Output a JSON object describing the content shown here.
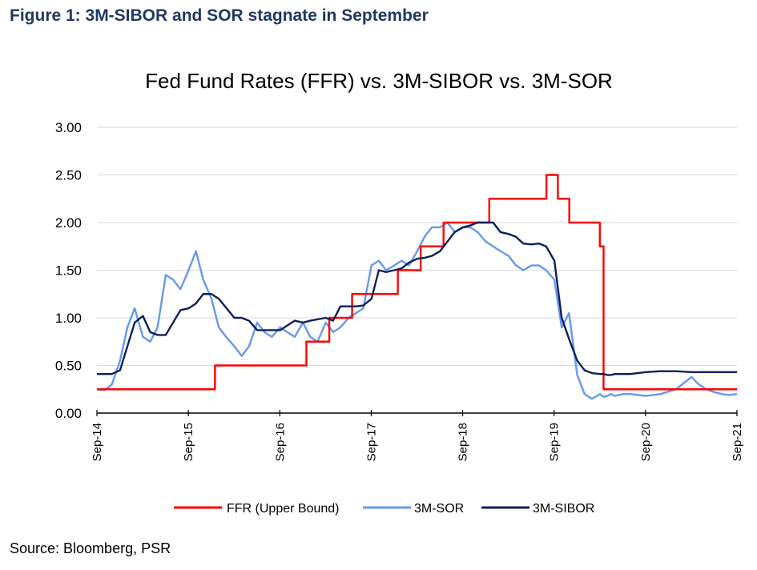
{
  "figure_title": "Figure 1: 3M-SIBOR and SOR stagnate in September",
  "source": "Source: Bloomberg, PSR",
  "chart_data": {
    "type": "line",
    "title": "Fed Fund Rates (FFR) vs. 3M-SIBOR vs. 3M-SOR",
    "xlabel": "",
    "ylabel": "",
    "xlim": [
      2014.667,
      2021.667
    ],
    "ylim": [
      0,
      3
    ],
    "y_ticks": [
      "0.00",
      "0.50",
      "1.00",
      "1.50",
      "2.00",
      "2.50",
      "3.00"
    ],
    "x_ticks": [
      "Sep-14",
      "Sep-15",
      "Sep-16",
      "Sep-17",
      "Sep-18",
      "Sep-19",
      "Sep-20",
      "Sep-21"
    ],
    "grid": "horizontal",
    "legend_position": "bottom",
    "colors": {
      "ffr": "#ff0000",
      "sor": "#6699ee",
      "sibor": "#0d1f5c"
    },
    "series": [
      {
        "name": "FFR (Upper Bound)",
        "step": true,
        "x": [
          2014.667,
          2015.958,
          2016.958,
          2017.208,
          2017.458,
          2017.958,
          2018.208,
          2018.458,
          2018.958,
          2019.583,
          2019.708,
          2019.833,
          2020.167,
          2020.208,
          2021.667
        ],
        "values": [
          0.25,
          0.5,
          0.75,
          1.0,
          1.25,
          1.5,
          1.75,
          2.0,
          2.25,
          2.5,
          2.25,
          2.0,
          1.75,
          0.25,
          0.25
        ]
      },
      {
        "name": "3M-SOR",
        "x": [
          2014.667,
          2014.75,
          2014.83,
          2014.92,
          2015.0,
          2015.08,
          2015.17,
          2015.25,
          2015.33,
          2015.42,
          2015.5,
          2015.58,
          2015.67,
          2015.75,
          2015.83,
          2015.92,
          2016.0,
          2016.08,
          2016.17,
          2016.25,
          2016.33,
          2016.42,
          2016.5,
          2016.58,
          2016.67,
          2016.75,
          2016.83,
          2016.92,
          2017.0,
          2017.08,
          2017.17,
          2017.25,
          2017.33,
          2017.42,
          2017.5,
          2017.58,
          2017.67,
          2017.75,
          2017.83,
          2017.92,
          2018.0,
          2018.08,
          2018.17,
          2018.25,
          2018.33,
          2018.42,
          2018.5,
          2018.58,
          2018.67,
          2018.75,
          2018.83,
          2018.92,
          2019.0,
          2019.08,
          2019.17,
          2019.25,
          2019.33,
          2019.42,
          2019.5,
          2019.58,
          2019.67,
          2019.75,
          2019.83,
          2019.92,
          2020.0,
          2020.08,
          2020.17,
          2020.21,
          2020.25,
          2020.29,
          2020.33,
          2020.42,
          2020.5,
          2020.67,
          2020.83,
          2021.0,
          2021.17,
          2021.25,
          2021.33,
          2021.42,
          2021.5,
          2021.58,
          2021.667
        ],
        "values": [
          0.25,
          0.24,
          0.3,
          0.55,
          0.9,
          1.1,
          0.8,
          0.75,
          0.9,
          1.45,
          1.4,
          1.3,
          1.5,
          1.7,
          1.4,
          1.2,
          0.9,
          0.8,
          0.7,
          0.6,
          0.7,
          0.95,
          0.85,
          0.8,
          0.9,
          0.85,
          0.8,
          0.95,
          0.8,
          0.75,
          0.95,
          0.85,
          0.9,
          1.0,
          1.05,
          1.1,
          1.55,
          1.6,
          1.5,
          1.55,
          1.6,
          1.55,
          1.7,
          1.85,
          1.95,
          1.95,
          2.0,
          1.9,
          1.95,
          1.95,
          1.9,
          1.8,
          1.75,
          1.7,
          1.65,
          1.55,
          1.5,
          1.55,
          1.55,
          1.5,
          1.4,
          0.9,
          1.05,
          0.4,
          0.2,
          0.15,
          0.2,
          0.17,
          0.18,
          0.2,
          0.18,
          0.2,
          0.2,
          0.18,
          0.2,
          0.25,
          0.38,
          0.3,
          0.25,
          0.22,
          0.2,
          0.19,
          0.2
        ]
      },
      {
        "name": "3M-SIBOR",
        "x": [
          2014.667,
          2014.83,
          2014.92,
          2015.0,
          2015.08,
          2015.17,
          2015.25,
          2015.33,
          2015.42,
          2015.5,
          2015.58,
          2015.67,
          2015.75,
          2015.83,
          2015.92,
          2016.0,
          2016.17,
          2016.25,
          2016.33,
          2016.42,
          2016.5,
          2016.67,
          2016.75,
          2016.83,
          2016.92,
          2017.0,
          2017.17,
          2017.25,
          2017.33,
          2017.42,
          2017.5,
          2017.58,
          2017.67,
          2017.75,
          2017.83,
          2017.92,
          2018.0,
          2018.08,
          2018.17,
          2018.25,
          2018.33,
          2018.42,
          2018.5,
          2018.58,
          2018.67,
          2018.75,
          2018.83,
          2018.92,
          2019.0,
          2019.08,
          2019.17,
          2019.25,
          2019.33,
          2019.42,
          2019.5,
          2019.58,
          2019.67,
          2019.75,
          2019.83,
          2019.92,
          2020.0,
          2020.08,
          2020.17,
          2020.21,
          2020.25,
          2020.29,
          2020.33,
          2020.42,
          2020.5,
          2020.67,
          2020.83,
          2021.0,
          2021.17,
          2021.33,
          2021.5,
          2021.667
        ],
        "values": [
          0.41,
          0.41,
          0.45,
          0.7,
          0.95,
          1.02,
          0.85,
          0.82,
          0.82,
          0.95,
          1.08,
          1.1,
          1.15,
          1.25,
          1.25,
          1.2,
          1.0,
          1.0,
          0.97,
          0.87,
          0.87,
          0.87,
          0.92,
          0.97,
          0.95,
          0.97,
          1.0,
          0.97,
          1.12,
          1.12,
          1.12,
          1.13,
          1.2,
          1.5,
          1.48,
          1.5,
          1.52,
          1.58,
          1.62,
          1.63,
          1.65,
          1.7,
          1.8,
          1.9,
          1.95,
          1.97,
          2.0,
          2.0,
          2.0,
          1.9,
          1.88,
          1.85,
          1.78,
          1.77,
          1.78,
          1.75,
          1.6,
          1.0,
          0.78,
          0.55,
          0.45,
          0.42,
          0.41,
          0.41,
          0.4,
          0.4,
          0.41,
          0.41,
          0.41,
          0.43,
          0.44,
          0.44,
          0.43,
          0.43,
          0.43,
          0.43
        ]
      }
    ]
  }
}
